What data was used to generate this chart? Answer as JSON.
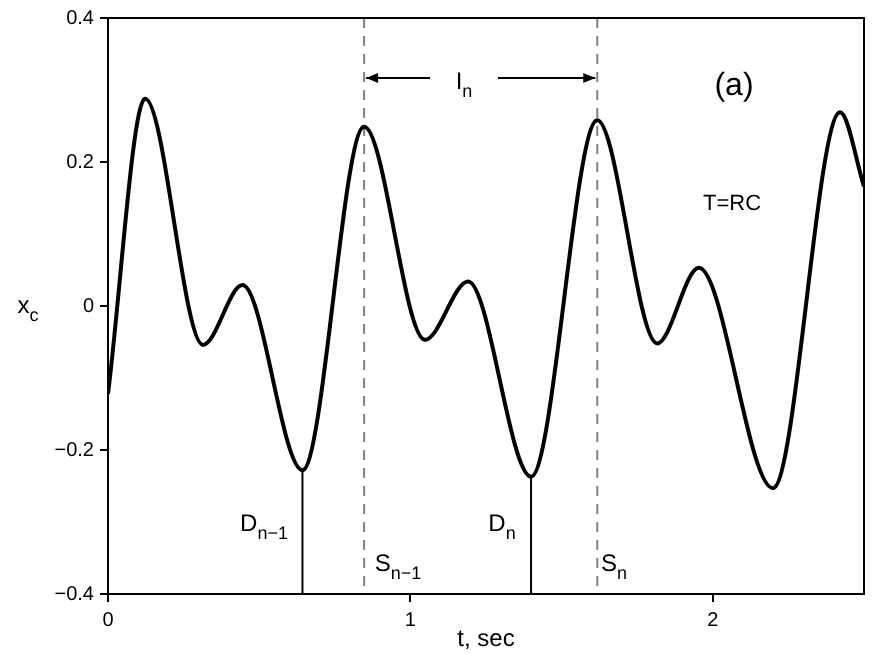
{
  "chart_data": {
    "type": "line",
    "xlabel": "t, sec",
    "ylabel": "x$_{c}$",
    "series": [
      {
        "color": "#000000",
        "x": [
          0,
          0.123,
          0.314,
          0.445,
          0.643,
          0.847,
          1.048,
          1.191,
          1.399,
          1.618,
          1.816,
          1.954,
          2.199,
          2.421,
          2.5
        ],
        "values": [
          -0.122,
          0.288,
          -0.054,
          0.029,
          -0.228,
          0.249,
          -0.047,
          0.034,
          -0.237,
          0.258,
          -0.052,
          0.053,
          -0.253,
          0.269,
          0.166
        ]
      },
      {
        "type": "line",
        "color": "#000000",
        "x": [
          0.643,
          0.643
        ],
        "values": [
          -0.4,
          -0.228
        ]
      },
      {
        "type": "line",
        "color": "#000000",
        "x": [
          1.399,
          1.399
        ],
        "values": [
          -0.4,
          -0.237
        ]
      }
    ],
    "ref_lines": [
      {
        "axis": "x",
        "value": 0.847,
        "color": "#808080",
        "line_style": "dashed"
      },
      {
        "axis": "x",
        "value": 1.618,
        "color": "#808080",
        "line_style": "dashed"
      }
    ],
    "annotations": [
      "D$_{n−1}$",
      "S$_{n−1}$",
      "D$_{n}$",
      "S$_{n}$",
      "I$_{n}$",
      "(a)",
      "T=RC"
    ],
    "xlim": [
      0,
      2.5
    ],
    "xticks": [
      0,
      1,
      2
    ],
    "ylim": [
      -0.4,
      0.4
    ],
    "yticks": [
      -0.4,
      -0.2,
      0,
      0.2,
      0.4
    ],
    "grid": false,
    "legend": false,
    "marker": "none",
    "line_style": "solid"
  }
}
